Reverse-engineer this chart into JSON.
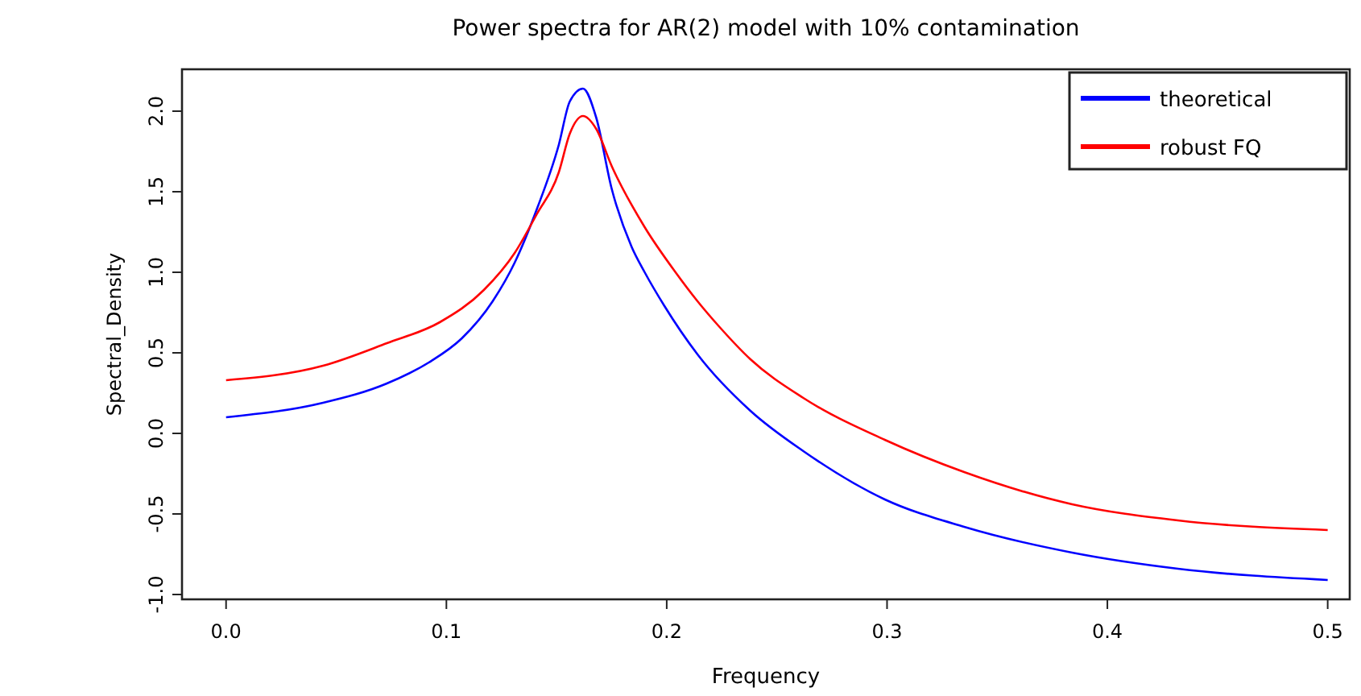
{
  "chart_data": {
    "type": "line",
    "title": "Power spectra for AR(2) model with 10% contamination",
    "xlabel": "Frequency",
    "ylabel": "Spectral_Density",
    "xlim": [
      -0.02,
      0.51
    ],
    "ylim": [
      -1.03,
      2.26
    ],
    "xticks": [
      {
        "value": 0,
        "label": "0.0"
      },
      0.1,
      0.2,
      0.3,
      0.4,
      0.5
    ],
    "yticks": [
      {
        "value": -1,
        "label": "-1.0"
      },
      -0.5,
      {
        "value": 0,
        "label": "0.0"
      },
      0.5,
      {
        "value": 1,
        "label": "1.0"
      },
      1.5,
      {
        "value": 2,
        "label": "2.0"
      }
    ],
    "legend": "top right",
    "grid": false,
    "line_style": "solid",
    "series": [
      {
        "name": "theoretical",
        "color": "#0000ff",
        "x": [
          0,
          0.044,
          0.073,
          0.092,
          0.107,
          0.121,
          0.131,
          0.141,
          0.151,
          0.156,
          0.162,
          0.168,
          0.175,
          0.184,
          0.19,
          0.199,
          0.214,
          0.238,
          0.262,
          0.299,
          0.335,
          0.384,
          0.432,
          0.5
        ],
        "values": [
          0.1,
          0.19,
          0.31,
          0.44,
          0.59,
          0.82,
          1.06,
          1.39,
          1.79,
          2.06,
          2.14,
          1.96,
          1.52,
          1.16,
          1.0,
          0.79,
          0.49,
          0.14,
          -0.11,
          -0.41,
          -0.58,
          -0.74,
          -0.84,
          -0.91
        ]
      },
      {
        "name": "robust FQ",
        "color": "#ff0000",
        "x": [
          0,
          0.044,
          0.073,
          0.097,
          0.117,
          0.131,
          0.141,
          0.151,
          0.156,
          0.162,
          0.168,
          0.175,
          0.19,
          0.204,
          0.214,
          0.224,
          0.238,
          0.262,
          0.299,
          0.335,
          0.384,
          0.432,
          0.5
        ],
        "values": [
          0.33,
          0.42,
          0.56,
          0.69,
          0.89,
          1.12,
          1.36,
          1.62,
          1.86,
          1.97,
          1.89,
          1.66,
          1.28,
          1.0,
          0.82,
          0.66,
          0.46,
          0.22,
          -0.04,
          -0.24,
          -0.44,
          -0.54,
          -0.6
        ]
      }
    ]
  }
}
